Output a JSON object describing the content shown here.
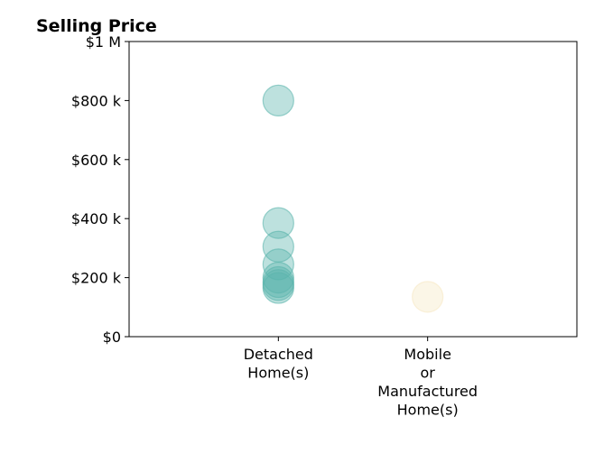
{
  "chart_data": {
    "type": "scatter",
    "title": "Selling Price",
    "xlabel": "",
    "ylabel": "",
    "categories": [
      [
        "Detached",
        "Home(s)"
      ],
      [
        "Mobile",
        "or",
        "Manufactured",
        "Home(s)"
      ]
    ],
    "ylim": [
      0,
      1000000
    ],
    "y_ticks": [
      {
        "value": 0,
        "label": "$0"
      },
      {
        "value": 200000,
        "label": "$200 k"
      },
      {
        "value": 400000,
        "label": "$400 k"
      },
      {
        "value": 600000,
        "label": "$600 k"
      },
      {
        "value": 800000,
        "label": "$800 k"
      },
      {
        "value": 1000000,
        "label": "$1 M"
      }
    ],
    "grid": false,
    "legend": "none",
    "series": [
      {
        "category_index": 0,
        "color": "#5ab4ac",
        "values": [
          800000,
          385000,
          305000,
          245000,
          200000,
          185000,
          175000,
          165000
        ]
      },
      {
        "category_index": 1,
        "color": "#f6e8c3",
        "values": [
          135000
        ]
      }
    ]
  }
}
